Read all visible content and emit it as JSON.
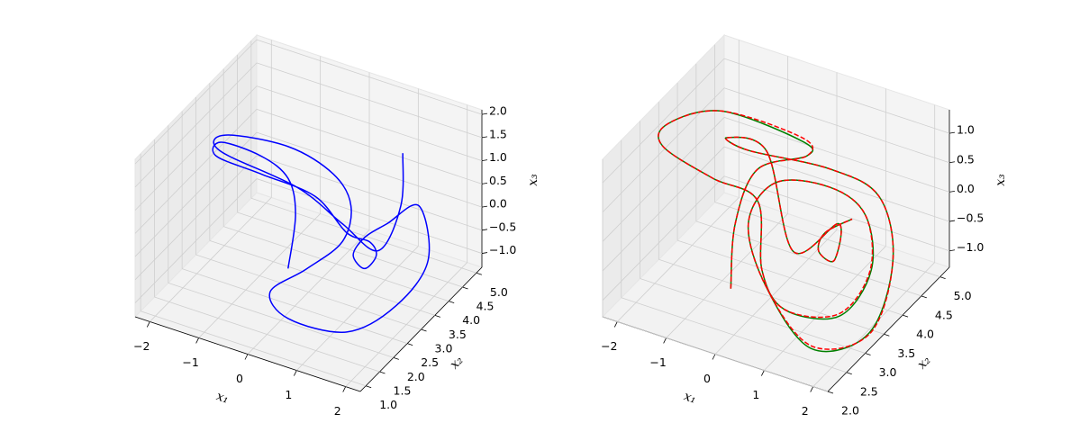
{
  "chart_data": [
    {
      "type": "line3d",
      "xlabel": "x₁",
      "ylabel": "x₂",
      "zlabel": "x₃",
      "xlim": [
        -2.3,
        2.3
      ],
      "ylim": [
        0.8,
        5.2
      ],
      "zlim": [
        -1.3,
        2.1
      ],
      "xticks": [
        {
          "value": -2,
          "label": "−2"
        },
        {
          "value": -1,
          "label": "−1"
        },
        0,
        1,
        2
      ],
      "yticks": [
        {
          "value": 1,
          "label": "1.0"
        },
        1.5,
        {
          "value": 2,
          "label": "2.0"
        },
        2.5,
        {
          "value": 3,
          "label": "3.0"
        },
        3.5,
        {
          "value": 4,
          "label": "4.0"
        },
        4.5,
        {
          "value": 5,
          "label": "5.0"
        }
      ],
      "zticks": [
        {
          "value": -1,
          "label": "−1.0"
        },
        {
          "value": -0.5,
          "label": "−0.5"
        },
        {
          "value": 0,
          "label": "0.0"
        },
        0.5,
        {
          "value": 1,
          "label": "1.0"
        },
        1.5,
        {
          "value": 2,
          "label": "2.0"
        }
      ],
      "grid": true,
      "series": [
        {
          "color": "#0000ff",
          "linestyle": "solid",
          "x": [
            0.52,
            -0.18,
            -0.84,
            -1.59,
            -1.71,
            -1.93,
            -1.32,
            -0.15,
            0.88,
            1.37,
            1.68,
            1.7,
            1.32,
            1.23,
            1.37,
            1.59,
            2.08,
            2.27,
            1.67,
            0.56,
            0.12,
            0.57,
            0.95,
            0.54,
            -0.21,
            -0.6,
            -1.75,
            -2.06,
            -0.56,
            0.68,
            1.64,
            1.31,
            1.26
          ],
          "y": [
            1.34,
            2.85,
            3.75,
            4.11,
            2.86,
            3.08,
            3.63,
            3.51,
            2.82,
            2.78,
            2.48,
            2.02,
            2.28,
            2.86,
            3.42,
            4.18,
            3.64,
            2.15,
            1.43,
            1.27,
            1.4,
            1.91,
            2.54,
            3.58,
            4.27,
            3.34,
            3.09,
            3.46,
            3.59,
            3.02,
            2.62,
            4.02,
            4.18
          ],
          "z": [
            0.4,
            0.4,
            0.4,
            0.4,
            1.42,
            0.91,
            0.4,
            0.4,
            0.4,
            0.4,
            0.4,
            0.4,
            0.4,
            0.4,
            0.4,
            0.4,
            -0.28,
            -0.28,
            -0.62,
            -0.62,
            -0.28,
            0.06,
            0.4,
            0.4,
            0.4,
            1.42,
            1.42,
            0.74,
            0.4,
            0.4,
            0.4,
            0.4,
            1.42
          ]
        }
      ]
    },
    {
      "type": "line3d",
      "xlabel": "x₁",
      "ylabel": "x₂",
      "zlabel": "x₃",
      "xlim": [
        -2.3,
        2.3
      ],
      "ylim": [
        2.0,
        5.25
      ],
      "zlim": [
        -1.28,
        1.4
      ],
      "xticks": [
        {
          "value": -2,
          "label": "−2"
        },
        {
          "value": -1,
          "label": "−1"
        },
        0,
        1,
        2
      ],
      "yticks": [
        {
          "value": 2,
          "label": "2.0"
        },
        2.5,
        {
          "value": 3,
          "label": "3.0"
        },
        3.5,
        {
          "value": 4,
          "label": "4.0"
        },
        4.5,
        {
          "value": 5,
          "label": "5.0"
        }
      ],
      "zticks": [
        {
          "value": -1,
          "label": "−1.0"
        },
        {
          "value": -0.5,
          "label": "−0.5"
        },
        {
          "value": 0,
          "label": "0.0"
        },
        0.5,
        {
          "value": 1,
          "label": "1.0"
        }
      ],
      "grid": true,
      "series": [
        {
          "color": "#008000",
          "linestyle": "solid",
          "x": [
            -0.27,
            -0.47,
            -0.24,
            0.32,
            -0.02,
            -1.67,
            -2.07,
            -1.93,
            -1.27,
            -0.47,
            0.16,
            0.87,
            1.8,
            1.85,
            1.4,
            0.67,
            -0.23,
            -0.27,
            0.5,
            1.62,
            2.17,
            2.04,
            1.34,
            0.4,
            -0.89,
            -1.2,
            -0.37,
            0.6,
            1.12,
            1.37,
            0.99,
            1.05,
            1.26
          ],
          "y": [
            2.77,
            3.15,
            3.44,
            4.03,
            4.36,
            4.36,
            3.44,
            3.12,
            3.59,
            3.75,
            3.04,
            2.71,
            2.96,
            3.75,
            4.18,
            4.18,
            3.91,
            3.24,
            2.72,
            2.45,
            3.27,
            4.08,
            4.63,
            4.54,
            4.06,
            3.86,
            3.86,
            3.3,
            3.83,
            3.39,
            3.47,
            3.56,
            4.01
          ],
          "z": [
            -0.74,
            0.06,
            0.86,
            0.86,
            0.8,
            0.86,
            1.13,
            1.0,
            0.33,
            0.06,
            -0.48,
            -0.74,
            -0.76,
            -0.48,
            0.06,
            0.33,
            0.33,
            0.06,
            -0.48,
            -1.03,
            -1.15,
            -0.48,
            0.06,
            0.33,
            0.6,
            0.86,
            0.86,
            -0.21,
            0.06,
            -0.21,
            -0.21,
            0.06,
            0.06
          ]
        },
        {
          "color": "#ff0000",
          "linestyle": "dashed",
          "x": [
            -0.27,
            -0.47,
            -0.24,
            0.32,
            -0.02,
            -1.67,
            -2.07,
            -1.93,
            -1.27,
            -0.47,
            0.16,
            0.87,
            1.78,
            1.83,
            1.4,
            0.67,
            -0.23,
            -0.27,
            0.5,
            1.6,
            2.19,
            2.04,
            1.34,
            0.4,
            -0.89,
            -1.2,
            -0.37,
            0.6,
            1.12,
            1.37,
            0.99,
            1.05,
            1.26
          ],
          "y": [
            2.77,
            3.15,
            3.44,
            4.03,
            4.36,
            4.36,
            3.44,
            3.12,
            3.59,
            3.75,
            3.04,
            2.71,
            2.98,
            3.75,
            4.18,
            4.18,
            3.91,
            3.24,
            2.72,
            2.48,
            3.27,
            4.08,
            4.63,
            4.54,
            4.06,
            3.86,
            3.86,
            3.3,
            3.83,
            3.39,
            3.47,
            3.56,
            4.01
          ],
          "z": [
            -0.74,
            0.06,
            0.86,
            0.86,
            0.86,
            0.86,
            1.13,
            1.0,
            0.33,
            0.06,
            -0.48,
            -0.74,
            -0.74,
            -0.48,
            0.06,
            0.33,
            0.33,
            0.06,
            -0.48,
            -1.01,
            -1.15,
            -0.48,
            0.06,
            0.33,
            0.6,
            0.86,
            0.86,
            -0.21,
            0.06,
            -0.21,
            -0.21,
            0.06,
            0.06
          ]
        }
      ]
    }
  ]
}
